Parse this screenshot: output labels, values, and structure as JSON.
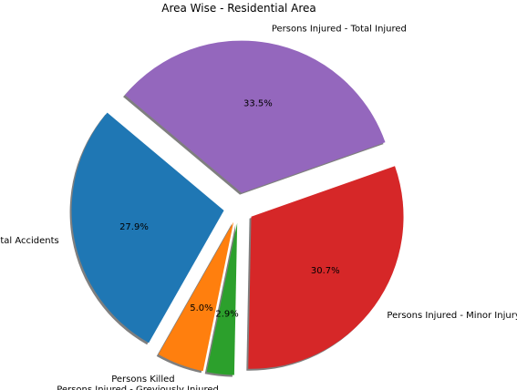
{
  "chart_data": {
    "type": "pie",
    "title": "Area Wise - Residential Area",
    "slices": [
      {
        "label": "Total Accidents",
        "percent": 27.9,
        "color": "#1f77b4"
      },
      {
        "label": "Persons Killed",
        "percent": 5.0,
        "color": "#ff7f0e"
      },
      {
        "label": "Persons Injured - Greviously Injured",
        "percent": 2.9,
        "color": "#2ca02c"
      },
      {
        "label": "Persons Injured - Minor Injury",
        "percent": 30.7,
        "color": "#d62728"
      },
      {
        "label": "Persons Injured - Total Injured",
        "percent": 33.5,
        "color": "#9467bd"
      }
    ],
    "start_angle_deg": 140,
    "counterclockwise": true,
    "exploded": true,
    "shadow": true,
    "pct_format": "{:.1f}%"
  }
}
